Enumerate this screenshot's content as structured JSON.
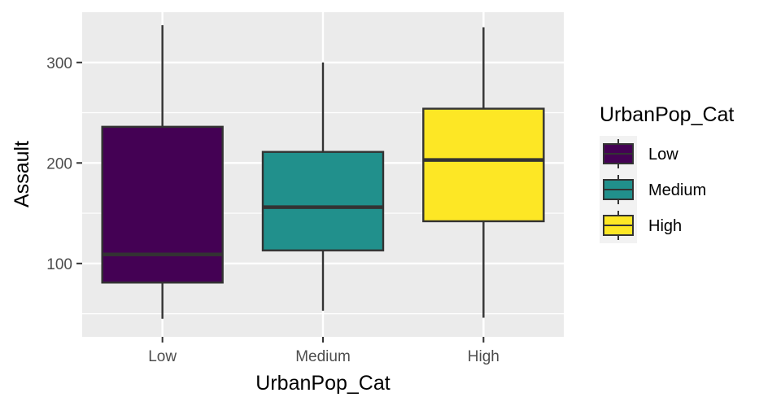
{
  "chart_data": {
    "type": "boxplot",
    "title": "",
    "xlabel": "UrbanPop_Cat",
    "ylabel": "Assault",
    "ylim": [
      27,
      350
    ],
    "y_ticks": [
      100,
      200,
      300
    ],
    "y_tick_labels": [
      "100",
      "200",
      "300"
    ],
    "y_minor_ticks": [
      50,
      150,
      250
    ],
    "grid": true,
    "legend": {
      "title": "UrbanPop_Cat",
      "placement": "right",
      "entries": [
        "Low",
        "Medium",
        "High"
      ]
    },
    "categories": [
      "Low",
      "Medium",
      "High"
    ],
    "boxes": [
      {
        "category": "Low",
        "fill": "#440154",
        "whisker_low": 45,
        "q1": 81,
        "median": 109,
        "q3": 236,
        "whisker_high": 337
      },
      {
        "category": "Medium",
        "fill": "#21908C",
        "whisker_low": 53,
        "q1": 113,
        "median": 156,
        "q3": 211,
        "whisker_high": 300
      },
      {
        "category": "High",
        "fill": "#FDE725",
        "whisker_low": 46,
        "q1": 142,
        "median": 203,
        "q3": 254,
        "whisker_high": 335
      }
    ]
  }
}
